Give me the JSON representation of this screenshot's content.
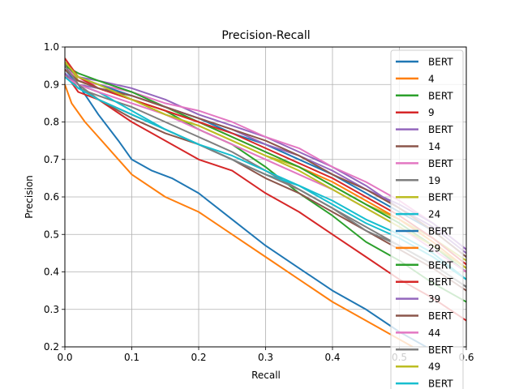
{
  "chart_data": {
    "type": "line",
    "title": "Precision-Recall",
    "xlabel": "Recall",
    "ylabel": "Precision",
    "xlim": [
      0.0,
      0.6
    ],
    "ylim": [
      0.2,
      1.0
    ],
    "xticks": [
      "0.0",
      "0.1",
      "0.2",
      "0.3",
      "0.4",
      "0.5",
      "0.6"
    ],
    "yticks": [
      "0.2",
      "0.3",
      "0.4",
      "0.5",
      "0.6",
      "0.7",
      "0.8",
      "0.9",
      "1.0"
    ],
    "grid": true,
    "legend_position": "top-right",
    "series": [
      {
        "name": "BERT",
        "color": "#1f77b4",
        "points": [
          [
            0,
            0.94
          ],
          [
            0.02,
            0.9
          ],
          [
            0.05,
            0.82
          ],
          [
            0.08,
            0.75
          ],
          [
            0.1,
            0.7
          ],
          [
            0.13,
            0.67
          ],
          [
            0.16,
            0.65
          ],
          [
            0.2,
            0.61
          ],
          [
            0.25,
            0.54
          ],
          [
            0.3,
            0.47
          ],
          [
            0.35,
            0.41
          ],
          [
            0.4,
            0.35
          ],
          [
            0.45,
            0.3
          ],
          [
            0.5,
            0.24
          ],
          [
            0.54,
            0.2
          ]
        ]
      },
      {
        "name": "4",
        "color": "#ff7f0e",
        "points": [
          [
            0,
            0.9
          ],
          [
            0.01,
            0.85
          ],
          [
            0.03,
            0.8
          ],
          [
            0.05,
            0.76
          ],
          [
            0.08,
            0.7
          ],
          [
            0.1,
            0.66
          ],
          [
            0.15,
            0.6
          ],
          [
            0.2,
            0.56
          ],
          [
            0.25,
            0.5
          ],
          [
            0.3,
            0.44
          ],
          [
            0.35,
            0.38
          ],
          [
            0.4,
            0.32
          ],
          [
            0.45,
            0.27
          ],
          [
            0.5,
            0.22
          ],
          [
            0.52,
            0.2
          ]
        ]
      },
      {
        "name": "BERT",
        "color": "#2ca02c",
        "points": [
          [
            0,
            0.95
          ],
          [
            0.02,
            0.92
          ],
          [
            0.05,
            0.9
          ],
          [
            0.1,
            0.86
          ],
          [
            0.15,
            0.83
          ],
          [
            0.2,
            0.78
          ],
          [
            0.25,
            0.74
          ],
          [
            0.3,
            0.68
          ],
          [
            0.35,
            0.61
          ],
          [
            0.4,
            0.55
          ],
          [
            0.45,
            0.48
          ],
          [
            0.5,
            0.43
          ],
          [
            0.55,
            0.37
          ],
          [
            0.6,
            0.32
          ]
        ]
      },
      {
        "name": "9",
        "color": "#d62728",
        "points": [
          [
            0,
            0.93
          ],
          [
            0.02,
            0.88
          ],
          [
            0.05,
            0.86
          ],
          [
            0.1,
            0.8
          ],
          [
            0.15,
            0.75
          ],
          [
            0.2,
            0.7
          ],
          [
            0.25,
            0.67
          ],
          [
            0.3,
            0.61
          ],
          [
            0.35,
            0.56
          ],
          [
            0.4,
            0.5
          ],
          [
            0.45,
            0.44
          ],
          [
            0.5,
            0.38
          ],
          [
            0.55,
            0.33
          ],
          [
            0.6,
            0.27
          ]
        ]
      },
      {
        "name": "BERT",
        "color": "#9467bd",
        "points": [
          [
            0,
            0.94
          ],
          [
            0.02,
            0.92
          ],
          [
            0.05,
            0.91
          ],
          [
            0.1,
            0.89
          ],
          [
            0.15,
            0.86
          ],
          [
            0.2,
            0.82
          ],
          [
            0.25,
            0.79
          ],
          [
            0.3,
            0.76
          ],
          [
            0.35,
            0.72
          ],
          [
            0.4,
            0.68
          ],
          [
            0.45,
            0.63
          ],
          [
            0.5,
            0.57
          ],
          [
            0.55,
            0.52
          ],
          [
            0.6,
            0.45
          ]
        ]
      },
      {
        "name": "14",
        "color": "#8c564b",
        "points": [
          [
            0,
            0.96
          ],
          [
            0.02,
            0.9
          ],
          [
            0.05,
            0.86
          ],
          [
            0.1,
            0.81
          ],
          [
            0.15,
            0.77
          ],
          [
            0.2,
            0.74
          ],
          [
            0.25,
            0.7
          ],
          [
            0.3,
            0.65
          ],
          [
            0.35,
            0.61
          ],
          [
            0.4,
            0.56
          ],
          [
            0.45,
            0.51
          ],
          [
            0.5,
            0.46
          ],
          [
            0.55,
            0.41
          ],
          [
            0.6,
            0.35
          ]
        ]
      },
      {
        "name": "BERT",
        "color": "#e377c2",
        "points": [
          [
            0,
            0.95
          ],
          [
            0.02,
            0.91
          ],
          [
            0.05,
            0.9
          ],
          [
            0.1,
            0.88
          ],
          [
            0.15,
            0.85
          ],
          [
            0.2,
            0.83
          ],
          [
            0.25,
            0.8
          ],
          [
            0.3,
            0.76
          ],
          [
            0.35,
            0.73
          ],
          [
            0.4,
            0.68
          ],
          [
            0.45,
            0.64
          ],
          [
            0.5,
            0.59
          ],
          [
            0.55,
            0.53
          ],
          [
            0.6,
            0.46
          ]
        ]
      },
      {
        "name": "19",
        "color": "#7f7f7f",
        "points": [
          [
            0,
            0.93
          ],
          [
            0.02,
            0.89
          ],
          [
            0.05,
            0.87
          ],
          [
            0.1,
            0.84
          ],
          [
            0.15,
            0.8
          ],
          [
            0.2,
            0.76
          ],
          [
            0.25,
            0.72
          ],
          [
            0.3,
            0.67
          ],
          [
            0.35,
            0.62
          ],
          [
            0.4,
            0.57
          ],
          [
            0.45,
            0.51
          ],
          [
            0.5,
            0.47
          ],
          [
            0.55,
            0.42
          ],
          [
            0.6,
            0.36
          ]
        ]
      },
      {
        "name": "BERT",
        "color": "#bcbd22",
        "points": [
          [
            0,
            0.97
          ],
          [
            0.02,
            0.91
          ],
          [
            0.05,
            0.89
          ],
          [
            0.1,
            0.86
          ],
          [
            0.15,
            0.82
          ],
          [
            0.2,
            0.79
          ],
          [
            0.25,
            0.75
          ],
          [
            0.3,
            0.71
          ],
          [
            0.35,
            0.68
          ],
          [
            0.4,
            0.63
          ],
          [
            0.45,
            0.58
          ],
          [
            0.5,
            0.54
          ],
          [
            0.55,
            0.49
          ],
          [
            0.6,
            0.43
          ]
        ]
      },
      {
        "name": "24",
        "color": "#17becf",
        "points": [
          [
            0,
            0.93
          ],
          [
            0.02,
            0.9
          ],
          [
            0.05,
            0.88
          ],
          [
            0.1,
            0.83
          ],
          [
            0.15,
            0.78
          ],
          [
            0.2,
            0.74
          ],
          [
            0.25,
            0.7
          ],
          [
            0.3,
            0.66
          ],
          [
            0.35,
            0.63
          ],
          [
            0.4,
            0.58
          ],
          [
            0.45,
            0.53
          ],
          [
            0.5,
            0.49
          ],
          [
            0.55,
            0.44
          ],
          [
            0.6,
            0.38
          ]
        ]
      },
      {
        "name": "BERT",
        "color": "#1f77b4",
        "points": [
          [
            0,
            0.96
          ],
          [
            0.02,
            0.92
          ],
          [
            0.05,
            0.9
          ],
          [
            0.1,
            0.87
          ],
          [
            0.15,
            0.84
          ],
          [
            0.2,
            0.81
          ],
          [
            0.25,
            0.77
          ],
          [
            0.3,
            0.74
          ],
          [
            0.35,
            0.7
          ],
          [
            0.4,
            0.66
          ],
          [
            0.45,
            0.61
          ],
          [
            0.5,
            0.56
          ],
          [
            0.55,
            0.51
          ],
          [
            0.6,
            0.44
          ]
        ]
      },
      {
        "name": "29",
        "color": "#ff7f0e",
        "points": [
          [
            0,
            0.94
          ],
          [
            0.02,
            0.91
          ],
          [
            0.05,
            0.89
          ],
          [
            0.1,
            0.86
          ],
          [
            0.15,
            0.83
          ],
          [
            0.2,
            0.8
          ],
          [
            0.25,
            0.76
          ],
          [
            0.3,
            0.72
          ],
          [
            0.35,
            0.68
          ],
          [
            0.4,
            0.64
          ],
          [
            0.45,
            0.59
          ],
          [
            0.5,
            0.54
          ],
          [
            0.55,
            0.48
          ],
          [
            0.6,
            0.41
          ]
        ]
      },
      {
        "name": "BERT",
        "color": "#2ca02c",
        "points": [
          [
            0,
            0.95
          ],
          [
            0.02,
            0.93
          ],
          [
            0.05,
            0.91
          ],
          [
            0.1,
            0.88
          ],
          [
            0.15,
            0.84
          ],
          [
            0.2,
            0.8
          ],
          [
            0.25,
            0.76
          ],
          [
            0.3,
            0.72
          ],
          [
            0.35,
            0.68
          ],
          [
            0.4,
            0.63
          ],
          [
            0.45,
            0.58
          ],
          [
            0.5,
            0.53
          ],
          [
            0.55,
            0.47
          ],
          [
            0.6,
            0.4
          ]
        ]
      },
      {
        "name": "BERT",
        "color": "#d62728",
        "points": [
          [
            0,
            0.97
          ],
          [
            0.02,
            0.92
          ],
          [
            0.05,
            0.89
          ],
          [
            0.1,
            0.86
          ],
          [
            0.15,
            0.83
          ],
          [
            0.2,
            0.8
          ],
          [
            0.25,
            0.77
          ],
          [
            0.3,
            0.73
          ],
          [
            0.35,
            0.69
          ],
          [
            0.4,
            0.65
          ],
          [
            0.45,
            0.6
          ],
          [
            0.5,
            0.55
          ],
          [
            0.55,
            0.49
          ],
          [
            0.6,
            0.42
          ]
        ]
      },
      {
        "name": "39",
        "color": "#9467bd",
        "points": [
          [
            0,
            0.93
          ],
          [
            0.02,
            0.9
          ],
          [
            0.05,
            0.89
          ],
          [
            0.1,
            0.87
          ],
          [
            0.15,
            0.84
          ],
          [
            0.2,
            0.81
          ],
          [
            0.25,
            0.78
          ],
          [
            0.3,
            0.74
          ],
          [
            0.35,
            0.71
          ],
          [
            0.4,
            0.67
          ],
          [
            0.45,
            0.62
          ],
          [
            0.5,
            0.58
          ],
          [
            0.55,
            0.53
          ],
          [
            0.6,
            0.46
          ]
        ]
      },
      {
        "name": "BERT",
        "color": "#8c564b",
        "points": [
          [
            0,
            0.94
          ],
          [
            0.02,
            0.91
          ],
          [
            0.05,
            0.89
          ],
          [
            0.1,
            0.87
          ],
          [
            0.15,
            0.84
          ],
          [
            0.2,
            0.81
          ],
          [
            0.25,
            0.78
          ],
          [
            0.3,
            0.75
          ],
          [
            0.35,
            0.71
          ],
          [
            0.4,
            0.66
          ],
          [
            0.45,
            0.62
          ],
          [
            0.5,
            0.57
          ],
          [
            0.55,
            0.51
          ],
          [
            0.6,
            0.44
          ]
        ]
      },
      {
        "name": "44",
        "color": "#e377c2",
        "points": [
          [
            0,
            0.92
          ],
          [
            0.02,
            0.9
          ],
          [
            0.05,
            0.88
          ],
          [
            0.1,
            0.85
          ],
          [
            0.15,
            0.82
          ],
          [
            0.2,
            0.78
          ],
          [
            0.25,
            0.74
          ],
          [
            0.3,
            0.7
          ],
          [
            0.35,
            0.66
          ],
          [
            0.4,
            0.62
          ],
          [
            0.45,
            0.57
          ],
          [
            0.5,
            0.52
          ],
          [
            0.55,
            0.46
          ],
          [
            0.6,
            0.4
          ]
        ]
      },
      {
        "name": "BERT",
        "color": "#7f7f7f",
        "points": [
          [
            0,
            0.95
          ],
          [
            0.02,
            0.9
          ],
          [
            0.05,
            0.86
          ],
          [
            0.1,
            0.82
          ],
          [
            0.15,
            0.78
          ],
          [
            0.2,
            0.74
          ],
          [
            0.25,
            0.7
          ],
          [
            0.3,
            0.66
          ],
          [
            0.35,
            0.62
          ],
          [
            0.4,
            0.57
          ],
          [
            0.45,
            0.52
          ],
          [
            0.5,
            0.47
          ],
          [
            0.55,
            0.42
          ],
          [
            0.6,
            0.36
          ]
        ]
      },
      {
        "name": "49",
        "color": "#bcbd22",
        "points": [
          [
            0,
            0.96
          ],
          [
            0.02,
            0.92
          ],
          [
            0.05,
            0.9
          ],
          [
            0.1,
            0.86
          ],
          [
            0.15,
            0.82
          ],
          [
            0.2,
            0.79
          ],
          [
            0.25,
            0.75
          ],
          [
            0.3,
            0.71
          ],
          [
            0.35,
            0.67
          ],
          [
            0.4,
            0.62
          ],
          [
            0.45,
            0.57
          ],
          [
            0.5,
            0.52
          ],
          [
            0.55,
            0.47
          ],
          [
            0.6,
            0.41
          ]
        ]
      },
      {
        "name": "BERT",
        "color": "#17becf",
        "points": [
          [
            0,
            0.92
          ],
          [
            0.02,
            0.89
          ],
          [
            0.05,
            0.86
          ],
          [
            0.1,
            0.82
          ],
          [
            0.15,
            0.78
          ],
          [
            0.2,
            0.74
          ],
          [
            0.25,
            0.71
          ],
          [
            0.3,
            0.67
          ],
          [
            0.35,
            0.63
          ],
          [
            0.4,
            0.59
          ],
          [
            0.45,
            0.54
          ],
          [
            0.5,
            0.5
          ],
          [
            0.55,
            0.45
          ],
          [
            0.6,
            0.38
          ]
        ]
      }
    ]
  }
}
